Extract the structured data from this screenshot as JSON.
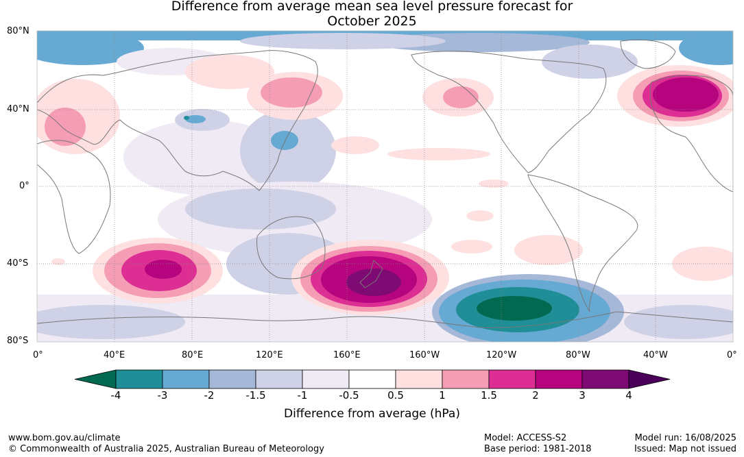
{
  "title": {
    "line1": "Difference from average mean sea level pressure forecast for",
    "line2": "October 2025"
  },
  "map": {
    "lat_labels": [
      "80°N",
      "40°N",
      "0°",
      "40°S",
      "80°S"
    ],
    "lon_labels": [
      "0°",
      "40°E",
      "80°E",
      "120°E",
      "160°E",
      "160°W",
      "120°W",
      "80°W",
      "40°W",
      "0°"
    ],
    "colors": {
      "land_outline": "#777777",
      "grid": "#888888"
    }
  },
  "colorbar": {
    "ticks": [
      "-4",
      "-3",
      "-2",
      "-1.5",
      "-1",
      "-0.5",
      "0.5",
      "1",
      "1.5",
      "2",
      "3",
      "4"
    ],
    "colors": [
      "#00694f",
      "#1f8e96",
      "#66a9d3",
      "#a6b8d8",
      "#cfd1e6",
      "#efeaf4",
      "#ffffff",
      "#fde0df",
      "#f49db4",
      "#dc2e93",
      "#b5047e",
      "#7e0a73",
      "#4a0059"
    ],
    "label": "Difference from average (hPa)"
  },
  "footer": {
    "url": "www.bom.gov.au/climate",
    "copyright": "© Commonwealth of Australia 2025, Australian Bureau of Meteorology",
    "model": "Model: ACCESS-S2",
    "base_period": "Base period: 1981-2018",
    "model_run": "Model run: 16/08/2025",
    "issued": "Issued: Map not issued"
  }
}
